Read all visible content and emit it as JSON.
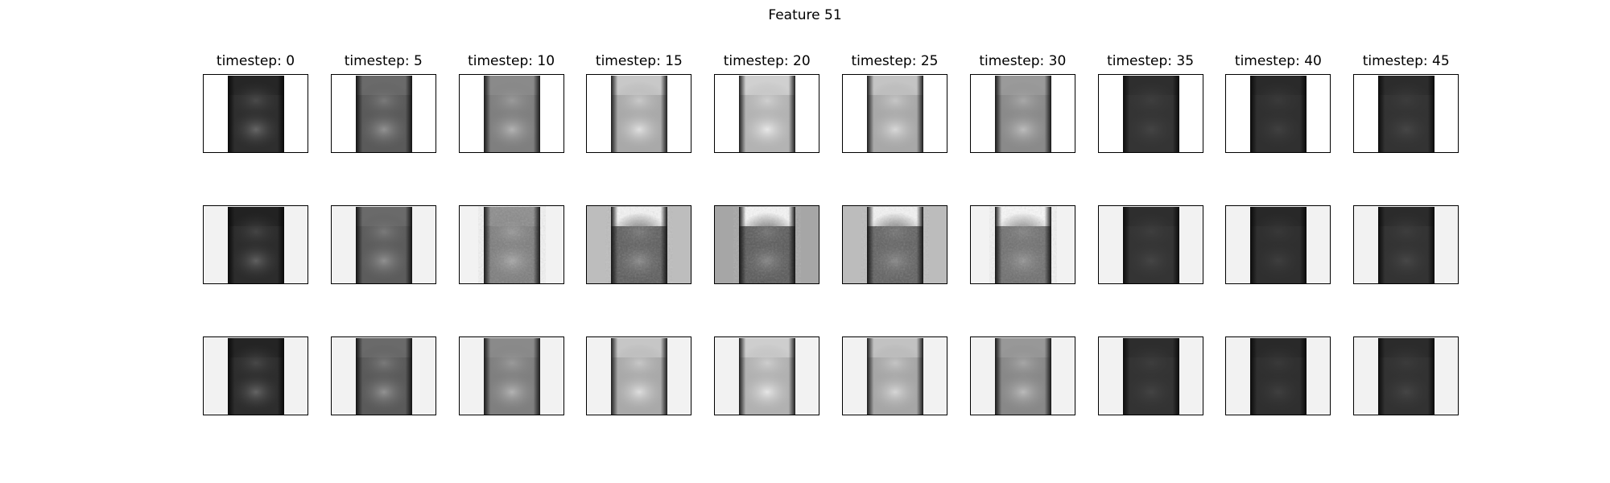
{
  "figure": {
    "title": "Feature 51",
    "columns": [
      "timestep: 0",
      "timestep: 5",
      "timestep: 10",
      "timestep: 15",
      "timestep: 20",
      "timestep: 25",
      "timestep: 30",
      "timestep: 35",
      "timestep: 40",
      "timestep: 45"
    ]
  },
  "panels": [
    [
      {
        "bg": "#ffffff",
        "top": "#262626",
        "mid": "#2e2e2e",
        "blob1": "#4a4a4a",
        "blob2": "#666666",
        "edge": "#0a0a0a",
        "noise": false
      },
      {
        "bg": "#ffffff",
        "top": "#6a6a6a",
        "mid": "#5a5a5a",
        "blob1": "#7a7a7a",
        "blob2": "#929292",
        "edge": "#141414",
        "noise": false
      },
      {
        "bg": "#ffffff",
        "top": "#8a8a8a",
        "mid": "#7f7f7f",
        "blob1": "#9a9a9a",
        "blob2": "#b3b3b3",
        "edge": "#1a1a1a",
        "noise": false
      },
      {
        "bg": "#ffffff",
        "top": "#c8c8c8",
        "mid": "#a9a9a9",
        "blob1": "#c9c9c9",
        "blob2": "#e0e0e0",
        "edge": "#1e1e1e",
        "noise": false
      },
      {
        "bg": "#ffffff",
        "top": "#d0d0d0",
        "mid": "#b3b3b3",
        "blob1": "#cfcfcf",
        "blob2": "#e8e8e8",
        "edge": "#1e1e1e",
        "noise": false
      },
      {
        "bg": "#ffffff",
        "top": "#c4c4c4",
        "mid": "#a8a8a8",
        "blob1": "#c6c6c6",
        "blob2": "#d8d8d8",
        "edge": "#1c1c1c",
        "noise": false
      },
      {
        "bg": "#ffffff",
        "top": "#9a9a9a",
        "mid": "#8a8a8a",
        "blob1": "#a8a8a8",
        "blob2": "#bcbcbc",
        "edge": "#181818",
        "noise": false
      },
      {
        "bg": "#ffffff",
        "top": "#2e2e2e",
        "mid": "#343434",
        "blob1": "#3e3e3e",
        "blob2": "#444444",
        "edge": "#0c0c0c",
        "noise": false
      },
      {
        "bg": "#ffffff",
        "top": "#2a2a2a",
        "mid": "#303030",
        "blob1": "#3a3a3a",
        "blob2": "#404040",
        "edge": "#0a0a0a",
        "noise": false
      },
      {
        "bg": "#ffffff",
        "top": "#2c2c2c",
        "mid": "#333333",
        "blob1": "#3c3c3c",
        "blob2": "#464646",
        "edge": "#0b0b0b",
        "noise": false
      }
    ],
    [
      {
        "bg": "#f2f2f2",
        "top": "#222222",
        "mid": "#2c2c2c",
        "blob1": "#444444",
        "blob2": "#606060",
        "edge": "#0a0a0a",
        "noise": false
      },
      {
        "bg": "#f2f2f2",
        "top": "#6a6a6a",
        "mid": "#5c5c5c",
        "blob1": "#7a7a7a",
        "blob2": "#909090",
        "edge": "#141414",
        "noise": false
      },
      {
        "bg": "#f2f2f2",
        "top": "#8c8c8c",
        "mid": "#7c7c7c",
        "blob1": "#999999",
        "blob2": "#a8a8a8",
        "edge": "#1a1a1a",
        "noise": true
      },
      {
        "bg": "#bdbdbd",
        "top": "#f4f4f4",
        "mid": "#5c5c5c",
        "blob1": "#777777",
        "blob2": "#8a8a8a",
        "edge": "#161616",
        "noise": true
      },
      {
        "bg": "#a6a6a6",
        "top": "#f6f6f6",
        "mid": "#585858",
        "blob1": "#707070",
        "blob2": "#848484",
        "edge": "#161616",
        "noise": true
      },
      {
        "bg": "#bcbcbc",
        "top": "#f4f4f4",
        "mid": "#606060",
        "blob1": "#747474",
        "blob2": "#868686",
        "edge": "#161616",
        "noise": true
      },
      {
        "bg": "#f2f2f2",
        "top": "#f8f8f8",
        "mid": "#6e6e6e",
        "blob1": "#828282",
        "blob2": "#949494",
        "edge": "#161616",
        "noise": true
      },
      {
        "bg": "#f2f2f2",
        "top": "#2e2e2e",
        "mid": "#343434",
        "blob1": "#3e3e3e",
        "blob2": "#454545",
        "edge": "#0c0c0c",
        "noise": false
      },
      {
        "bg": "#f2f2f2",
        "top": "#282828",
        "mid": "#2f2f2f",
        "blob1": "#383838",
        "blob2": "#3e3e3e",
        "edge": "#0a0a0a",
        "noise": false
      },
      {
        "bg": "#f2f2f2",
        "top": "#2b2b2b",
        "mid": "#333333",
        "blob1": "#3d3d3d",
        "blob2": "#474747",
        "edge": "#0b0b0b",
        "noise": false
      }
    ],
    [
      {
        "bg": "#f2f2f2",
        "top": "#242424",
        "mid": "#2d2d2d",
        "blob1": "#484848",
        "blob2": "#646464",
        "edge": "#0a0a0a",
        "noise": false
      },
      {
        "bg": "#f2f2f2",
        "top": "#6a6a6a",
        "mid": "#5a5a5a",
        "blob1": "#7a7a7a",
        "blob2": "#929292",
        "edge": "#141414",
        "noise": false
      },
      {
        "bg": "#f2f2f2",
        "top": "#8a8a8a",
        "mid": "#7f7f7f",
        "blob1": "#9a9a9a",
        "blob2": "#b3b3b3",
        "edge": "#1a1a1a",
        "noise": false
      },
      {
        "bg": "#f2f2f2",
        "top": "#c6c6c6",
        "mid": "#a9a9a9",
        "blob1": "#c7c7c7",
        "blob2": "#dedede",
        "edge": "#1e1e1e",
        "noise": false
      },
      {
        "bg": "#f2f2f2",
        "top": "#cecece",
        "mid": "#b1b1b1",
        "blob1": "#cdcdcd",
        "blob2": "#e6e6e6",
        "edge": "#1e1e1e",
        "noise": false
      },
      {
        "bg": "#f2f2f2",
        "top": "#c2c2c2",
        "mid": "#a6a6a6",
        "blob1": "#c4c4c4",
        "blob2": "#d6d6d6",
        "edge": "#1c1c1c",
        "noise": false
      },
      {
        "bg": "#f2f2f2",
        "top": "#989898",
        "mid": "#888888",
        "blob1": "#a6a6a6",
        "blob2": "#bababa",
        "edge": "#181818",
        "noise": false
      },
      {
        "bg": "#f2f2f2",
        "top": "#2d2d2d",
        "mid": "#333333",
        "blob1": "#3d3d3d",
        "blob2": "#434343",
        "edge": "#0c0c0c",
        "noise": false
      },
      {
        "bg": "#f2f2f2",
        "top": "#292929",
        "mid": "#2f2f2f",
        "blob1": "#393939",
        "blob2": "#3f3f3f",
        "edge": "#0a0a0a",
        "noise": false
      },
      {
        "bg": "#f2f2f2",
        "top": "#2b2b2b",
        "mid": "#323232",
        "blob1": "#3b3b3b",
        "blob2": "#454545",
        "edge": "#0b0b0b",
        "noise": false
      }
    ]
  ]
}
